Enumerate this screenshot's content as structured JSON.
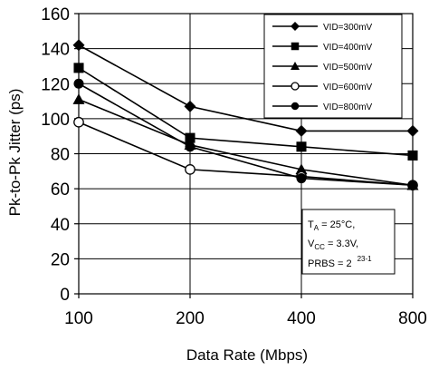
{
  "chart_data": {
    "type": "line",
    "title": "",
    "xlabel": "Data Rate (Mbps)",
    "ylabel": "Pk-to-Pk Jitter (ps)",
    "categories": [
      "100",
      "200",
      "400",
      "800"
    ],
    "ylim": [
      0,
      160
    ],
    "yticks": [
      "0",
      "20",
      "40",
      "60",
      "80",
      "100",
      "120",
      "140",
      "160"
    ],
    "grid": true,
    "legend_position": "top-right",
    "series": [
      {
        "name": "VID=300mV",
        "marker": "diamond",
        "values": [
          142,
          107,
          93,
          93
        ]
      },
      {
        "name": "VID=400mV",
        "marker": "square",
        "values": [
          129,
          89,
          84,
          79
        ]
      },
      {
        "name": "VID=500mV",
        "marker": "triangle",
        "values": [
          111,
          85,
          71,
          62
        ]
      },
      {
        "name": "VID=600mV",
        "marker": "open-circle",
        "values": [
          98,
          71,
          67,
          62
        ]
      },
      {
        "name": "VID=800mV",
        "marker": "filled-circle",
        "values": [
          120,
          84,
          66,
          62
        ]
      }
    ],
    "annotation": {
      "line1_main": "T",
      "line1_sub": "A",
      "line1_rest": " = 25°C,",
      "line2_main": "V",
      "line2_sub": "CC",
      "line2_rest": " = 3.3V,",
      "line3_main": "PRBS = 2",
      "line3_sup": "23-1"
    }
  }
}
